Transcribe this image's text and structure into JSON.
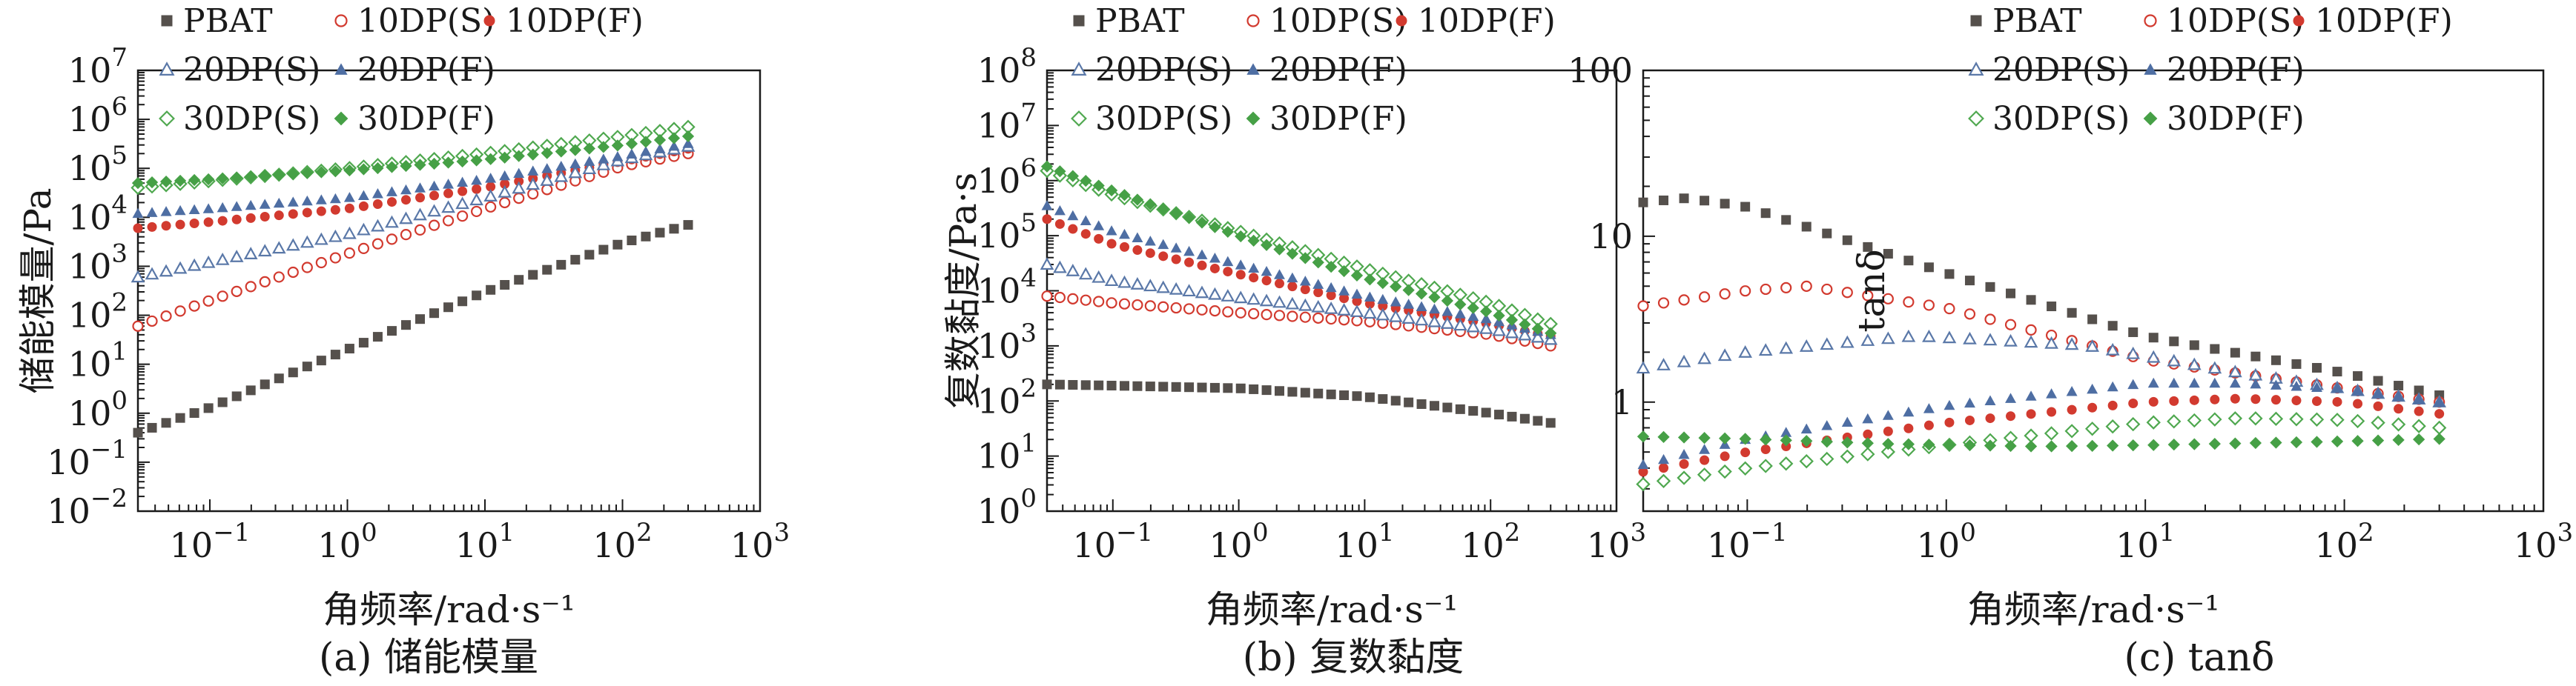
{
  "figure": {
    "xlabel": "角频率/rad·s⁻¹",
    "captions": [
      "(a) 储能模量",
      "(b) 复数黏度",
      "(c) tanδ"
    ]
  },
  "series_styles": {
    "PBAT": {
      "marker": "square",
      "filled": true,
      "color": "#55504c"
    },
    "10DP(S)": {
      "marker": "circle",
      "filled": false,
      "color": "#d23a2f"
    },
    "10DP(F)": {
      "marker": "circle",
      "filled": true,
      "color": "#d23a2f"
    },
    "20DP(S)": {
      "marker": "triangle",
      "filled": false,
      "color": "#5a78a8"
    },
    "20DP(F)": {
      "marker": "triangle",
      "filled": true,
      "color": "#4e6ea3"
    },
    "30DP(S)": {
      "marker": "diamond",
      "filled": false,
      "color": "#4fa84f"
    },
    "30DP(F)": {
      "marker": "diamond",
      "filled": true,
      "color": "#46a046"
    }
  },
  "chart_data": [
    {
      "type": "scatter",
      "title": "(a) 储能模量",
      "xlabel": "角频率/rad·s⁻¹",
      "ylabel": "储能模量/Pa",
      "xscale": "log",
      "yscale": "log",
      "xlim": [
        0.03,
        1000
      ],
      "ylim": [
        0.01,
        10000000
      ],
      "xticks": [
        {
          "v": 0.1,
          "b": "10",
          "e": "−1"
        },
        {
          "v": 1,
          "b": "10",
          "e": "0"
        },
        {
          "v": 10,
          "b": "10",
          "e": "1"
        },
        {
          "v": 100,
          "b": "10",
          "e": "2"
        },
        {
          "v": 1000,
          "b": "10",
          "e": "3"
        }
      ],
      "yticks": [
        {
          "v": 0.01,
          "b": "10",
          "e": "−2"
        },
        {
          "v": 0.1,
          "b": "10",
          "e": "−1"
        },
        {
          "v": 1,
          "b": "10",
          "e": "0"
        },
        {
          "v": 10,
          "b": "10",
          "e": "1"
        },
        {
          "v": 100,
          "b": "10",
          "e": "2"
        },
        {
          "v": 1000,
          "b": "10",
          "e": "3"
        },
        {
          "v": 10000,
          "b": "10",
          "e": "4"
        },
        {
          "v": 100000,
          "b": "10",
          "e": "5"
        },
        {
          "v": 1000000,
          "b": "10",
          "e": "6"
        },
        {
          "v": 10000000,
          "b": "10",
          "e": "7"
        }
      ],
      "legend": "top, 3 columns",
      "series": [
        {
          "name": "PBAT",
          "x": [
            0.03,
            0.1,
            1,
            10,
            100,
            300
          ],
          "y": [
            0.4,
            1.3,
            20,
            300,
            3000,
            7000
          ]
        },
        {
          "name": "10DP(S)",
          "x": [
            0.03,
            0.1,
            1,
            10,
            100,
            300
          ],
          "y": [
            60,
            200,
            1800,
            15000,
            110000,
            200000
          ]
        },
        {
          "name": "10DP(F)",
          "x": [
            0.03,
            0.1,
            1,
            10,
            100,
            300
          ],
          "y": [
            6000,
            8000,
            15000,
            40000,
            140000,
            250000
          ]
        },
        {
          "name": "20DP(S)",
          "x": [
            0.03,
            0.1,
            1,
            10,
            100,
            300
          ],
          "y": [
            600,
            1200,
            4500,
            25000,
            150000,
            280000
          ]
        },
        {
          "name": "20DP(F)",
          "x": [
            0.03,
            0.1,
            1,
            10,
            100,
            300
          ],
          "y": [
            12000,
            15000,
            25000,
            60000,
            180000,
            320000
          ]
        },
        {
          "name": "30DP(S)",
          "x": [
            0.03,
            0.1,
            1,
            10,
            100,
            300
          ],
          "y": [
            40000,
            55000,
            100000,
            200000,
            450000,
            700000
          ]
        },
        {
          "name": "30DP(F)",
          "x": [
            0.03,
            0.1,
            1,
            10,
            100,
            300
          ],
          "y": [
            50000,
            60000,
            90000,
            150000,
            300000,
            450000
          ]
        }
      ]
    },
    {
      "type": "scatter",
      "title": "(b) 复数黏度",
      "xlabel": "角频率/rad·s⁻¹",
      "ylabel": "复数黏度/Pa·s",
      "xscale": "log",
      "yscale": "log",
      "xlim": [
        0.03,
        1000
      ],
      "ylim": [
        1,
        100000000
      ],
      "xticks": [
        {
          "v": 0.1,
          "b": "10",
          "e": "−1"
        },
        {
          "v": 1,
          "b": "10",
          "e": "0"
        },
        {
          "v": 10,
          "b": "10",
          "e": "1"
        },
        {
          "v": 100,
          "b": "10",
          "e": "2"
        },
        {
          "v": 1000,
          "b": "10",
          "e": "3"
        }
      ],
      "yticks": [
        {
          "v": 1,
          "b": "10",
          "e": "0"
        },
        {
          "v": 10,
          "b": "10",
          "e": "1"
        },
        {
          "v": 100,
          "b": "10",
          "e": "2"
        },
        {
          "v": 1000,
          "b": "10",
          "e": "3"
        },
        {
          "v": 10000,
          "b": "10",
          "e": "4"
        },
        {
          "v": 100000,
          "b": "10",
          "e": "5"
        },
        {
          "v": 1000000,
          "b": "10",
          "e": "6"
        },
        {
          "v": 10000000,
          "b": "10",
          "e": "7"
        },
        {
          "v": 100000000,
          "b": "10",
          "e": "8"
        }
      ],
      "legend": "top, 3 columns",
      "series": [
        {
          "name": "PBAT",
          "x": [
            0.03,
            0.1,
            1,
            10,
            100,
            300
          ],
          "y": [
            200,
            190,
            170,
            120,
            60,
            40
          ]
        },
        {
          "name": "10DP(S)",
          "x": [
            0.03,
            0.1,
            1,
            10,
            100,
            300
          ],
          "y": [
            8000,
            6000,
            4000,
            2800,
            1600,
            1000
          ]
        },
        {
          "name": "10DP(F)",
          "x": [
            0.03,
            0.1,
            1,
            10,
            100,
            300
          ],
          "y": [
            200000,
            70000,
            20000,
            6000,
            2500,
            1500
          ]
        },
        {
          "name": "20DP(S)",
          "x": [
            0.03,
            0.1,
            1,
            10,
            100,
            300
          ],
          "y": [
            30000,
            15000,
            7500,
            4000,
            2000,
            1300
          ]
        },
        {
          "name": "20DP(F)",
          "x": [
            0.03,
            0.1,
            1,
            10,
            100,
            300
          ],
          "y": [
            350000,
            120000,
            30000,
            8000,
            3000,
            1600
          ]
        },
        {
          "name": "30DP(S)",
          "x": [
            0.03,
            0.1,
            1,
            10,
            100,
            300
          ],
          "y": [
            1500000,
            550000,
            120000,
            25000,
            6000,
            2500
          ]
        },
        {
          "name": "30DP(F)",
          "x": [
            0.03,
            0.1,
            1,
            10,
            100,
            300
          ],
          "y": [
            1800000,
            650000,
            100000,
            17000,
            4000,
            1700
          ]
        }
      ]
    },
    {
      "type": "scatter",
      "title": "(c) tanδ",
      "xlabel": "角频率/rad·s⁻¹",
      "ylabel": "tanδ",
      "xscale": "log",
      "yscale": "log",
      "xlim": [
        0.03,
        1000
      ],
      "ylim": [
        0.22,
        100
      ],
      "xticks": [
        {
          "v": 0.1,
          "b": "10",
          "e": "−1"
        },
        {
          "v": 1,
          "b": "10",
          "e": "0"
        },
        {
          "v": 10,
          "b": "10",
          "e": "1"
        },
        {
          "v": 100,
          "b": "10",
          "e": "2"
        },
        {
          "v": 1000,
          "b": "10",
          "e": "3"
        }
      ],
      "yticks": [
        {
          "v": 1,
          "b": "1",
          "e": ""
        },
        {
          "v": 10,
          "b": "10",
          "e": ""
        },
        {
          "v": 100,
          "b": "100",
          "e": ""
        }
      ],
      "legend": "top, 3 columns",
      "series": [
        {
          "name": "PBAT",
          "x": [
            0.03,
            0.05,
            0.1,
            1,
            10,
            100,
            300
          ],
          "y": [
            16,
            17,
            15,
            6,
            2.5,
            1.5,
            1.1
          ]
        },
        {
          "name": "10DP(S)",
          "x": [
            0.03,
            0.1,
            0.2,
            1,
            10,
            100,
            300
          ],
          "y": [
            3.8,
            4.7,
            5,
            3.7,
            1.8,
            1.2,
            1.0
          ]
        },
        {
          "name": "10DP(F)",
          "x": [
            0.03,
            0.1,
            1,
            10,
            30,
            100,
            300
          ],
          "y": [
            0.38,
            0.5,
            0.75,
            1.0,
            1.05,
            1.0,
            0.85
          ]
        },
        {
          "name": "20DP(S)",
          "x": [
            0.03,
            0.1,
            0.7,
            5,
            30,
            100,
            300
          ],
          "y": [
            1.6,
            2.0,
            2.5,
            2.2,
            1.5,
            1.2,
            1.0
          ]
        },
        {
          "name": "20DP(F)",
          "x": [
            0.03,
            0.1,
            1,
            10,
            30,
            100,
            300
          ],
          "y": [
            0.42,
            0.6,
            0.95,
            1.3,
            1.3,
            1.2,
            1.0
          ]
        },
        {
          "name": "30DP(S)",
          "x": [
            0.03,
            0.1,
            1,
            10,
            30,
            100,
            300
          ],
          "y": [
            0.32,
            0.4,
            0.55,
            0.75,
            0.8,
            0.78,
            0.7
          ]
        },
        {
          "name": "30DP(F)",
          "x": [
            0.03,
            0.1,
            0.5,
            3,
            10,
            100,
            300
          ],
          "y": [
            0.62,
            0.6,
            0.56,
            0.54,
            0.55,
            0.58,
            0.6
          ]
        }
      ]
    }
  ]
}
